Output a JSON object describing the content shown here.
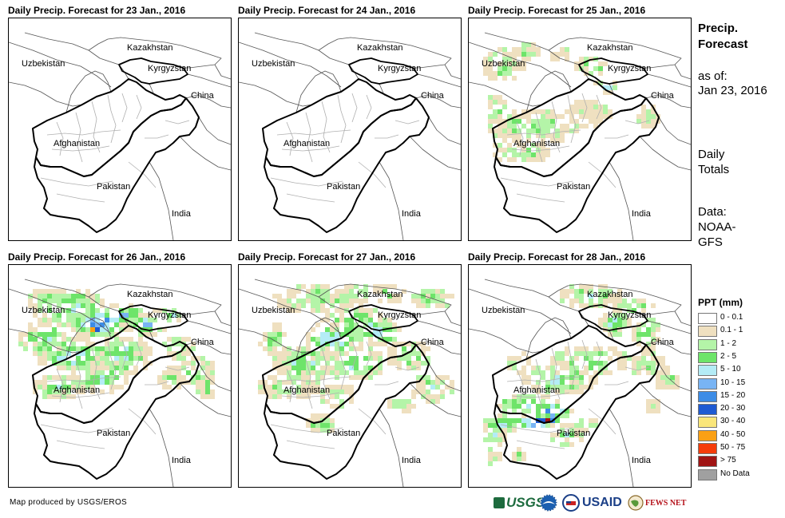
{
  "panels": [
    {
      "title": "Daily Precip. Forecast for 23 Jan., 2016",
      "pattern": "none"
    },
    {
      "title": "Daily Precip. Forecast for 24 Jan., 2016",
      "pattern": "none"
    },
    {
      "title": "Daily Precip. Forecast for 25 Jan., 2016",
      "pattern": "light"
    },
    {
      "title": "Daily Precip. Forecast for 26 Jan., 2016",
      "pattern": "north"
    },
    {
      "title": "Daily Precip. Forecast for 27 Jan., 2016",
      "pattern": "broad"
    },
    {
      "title": "Daily Precip. Forecast for 28 Jan., 2016",
      "pattern": "south"
    }
  ],
  "country_labels": {
    "kazakhstan": "Kazakhstan",
    "uzbekistan": "Uzbekistan",
    "kyrgyzstan": "Kyrgyzstan",
    "china": "China",
    "afghanistan": "Afghanistan",
    "pakistan": "Pakistan",
    "india": "India"
  },
  "side": {
    "title_line1": "Precip.",
    "title_line2": "Forecast",
    "asof_line1": "as of:",
    "asof_line2": "Jan 23, 2016",
    "daily_line1": "Daily",
    "daily_line2": "Totals",
    "data_line1": "Data:",
    "data_line2": "NOAA-",
    "data_line3": "GFS"
  },
  "legend": {
    "title": "PPT (mm)",
    "items": [
      {
        "label": "0 - 0.1",
        "color": "#ffffff"
      },
      {
        "label": "0.1 - 1",
        "color": "#efe0c0"
      },
      {
        "label": "1 - 2",
        "color": "#b4f4a8"
      },
      {
        "label": "2 - 5",
        "color": "#6ee46a"
      },
      {
        "label": "5 - 10",
        "color": "#b4ecf6"
      },
      {
        "label": "10 - 15",
        "color": "#78b4f4"
      },
      {
        "label": "15 - 20",
        "color": "#3c8ce6"
      },
      {
        "label": "20 - 30",
        "color": "#1e5ad2"
      },
      {
        "label": "30 - 40",
        "color": "#fae67a"
      },
      {
        "label": "40 - 50",
        "color": "#faa014"
      },
      {
        "label": "50 - 75",
        "color": "#f53c0a"
      },
      {
        "label": "> 75",
        "color": "#a01414"
      },
      {
        "label": "No Data",
        "color": "#a0a0a0"
      }
    ]
  },
  "footer": {
    "credit": "Map produced by USGS/EROS",
    "usgs": "USGS",
    "usaid": "USAID",
    "fews": "FEWS NET"
  }
}
